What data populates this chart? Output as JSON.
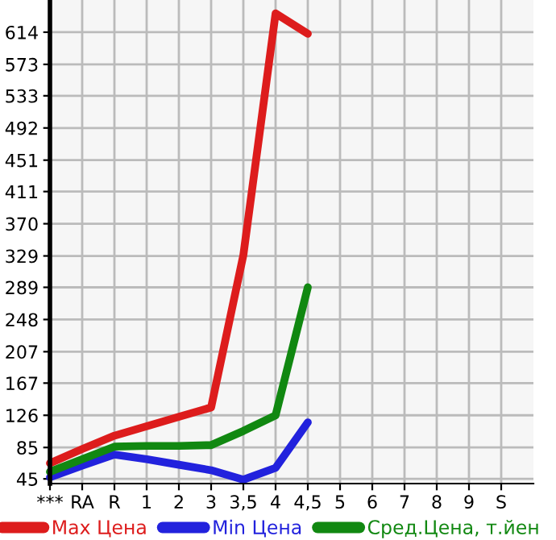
{
  "chart_data": {
    "type": "line",
    "categories": [
      "***",
      "RA",
      "R",
      "1",
      "2",
      "3",
      "3,5",
      "4",
      "4,5",
      "5",
      "6",
      "7",
      "8",
      "9",
      "S"
    ],
    "series": [
      {
        "name": "Max Цена",
        "color": "#dd1c1c",
        "values": [
          65,
          83,
          100,
          112,
          124,
          136,
          330,
          638,
          612,
          null,
          null,
          null,
          null,
          null,
          null
        ]
      },
      {
        "name": "Min Цена",
        "color": "#2222dd",
        "values": [
          47,
          62,
          76,
          70,
          63,
          56,
          44,
          59,
          117,
          null,
          null,
          null,
          null,
          null,
          null
        ]
      },
      {
        "name": "Сред.Цена, т.йен",
        "color": "#118811",
        "values": [
          54,
          70,
          86,
          87,
          87,
          88,
          106,
          126,
          289,
          null,
          null,
          null,
          null,
          null,
          null
        ]
      }
    ],
    "ylim": [
      39,
      655
    ],
    "yticks": [
      45,
      85,
      126,
      167,
      207,
      248,
      289,
      329,
      370,
      411,
      451,
      492,
      533,
      573,
      614
    ],
    "grid": true,
    "legend": "bottom",
    "marker": "none",
    "line_style": "solid"
  }
}
